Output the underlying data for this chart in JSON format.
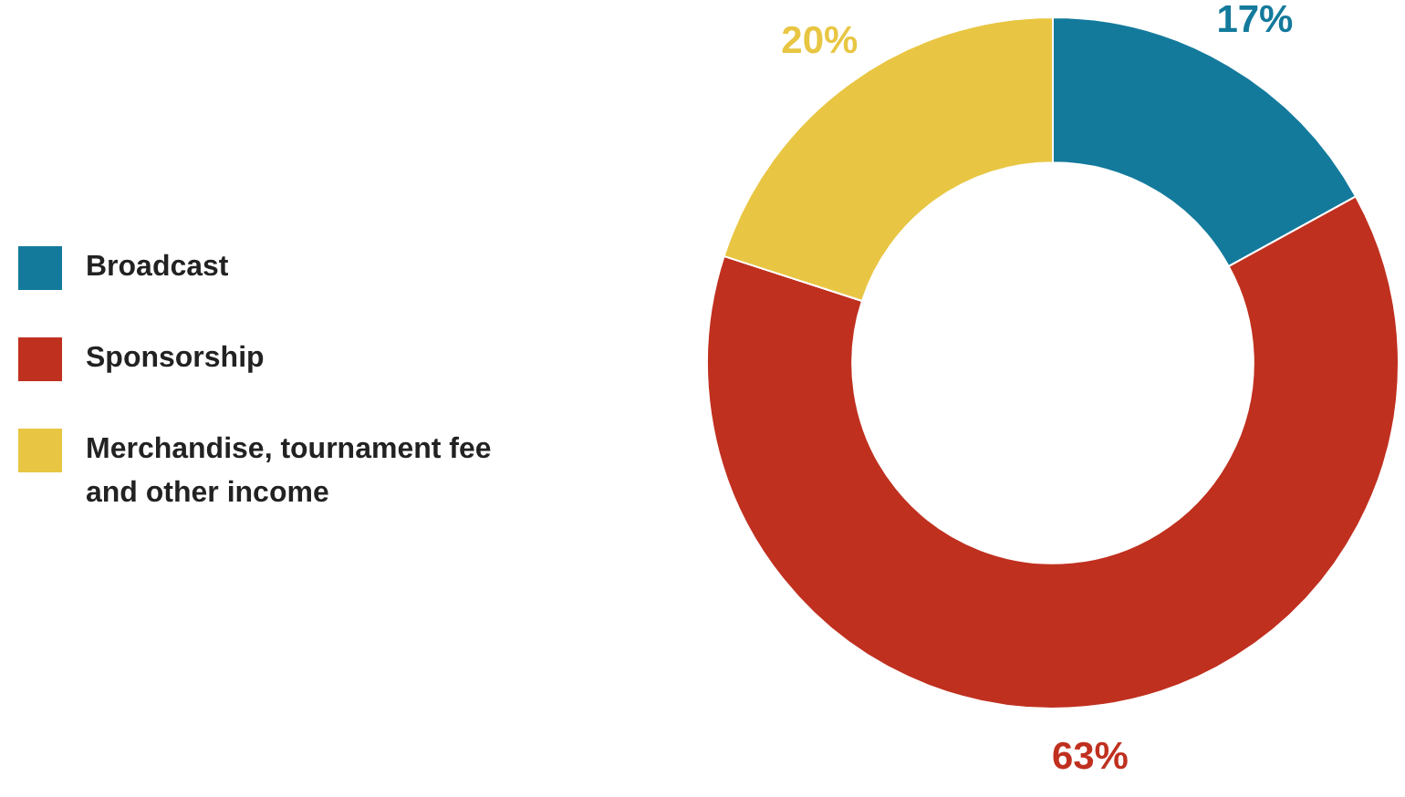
{
  "chart_data": {
    "type": "donut",
    "categories": [
      "Broadcast",
      "Sponsorship",
      "Merchandise, tournament fee and other income"
    ],
    "values": [
      17,
      63,
      20
    ],
    "colors": [
      "#137a9c",
      "#c0301f",
      "#e8c643"
    ],
    "value_labels": [
      "17%",
      "63%",
      "20%"
    ],
    "legend": "left"
  }
}
